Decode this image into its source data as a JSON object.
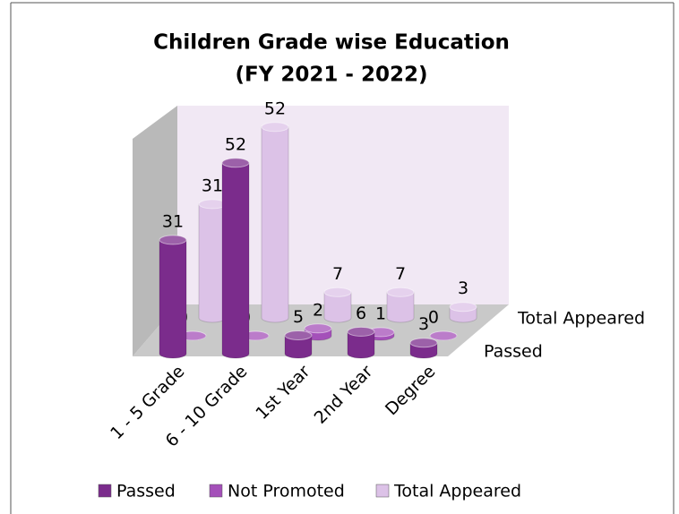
{
  "chart_data": {
    "type": "cylinder3d",
    "title": [
      "Children Grade wise Education",
      "(FY 2021 - 2022)"
    ],
    "categories": [
      "1 - 5 Grade",
      "6 - 10 Grade",
      "1st Year",
      "2nd Year",
      "Degree"
    ],
    "series": [
      {
        "name": "Passed",
        "color": "#7b2c8c",
        "values": [
          31,
          52,
          5,
          6,
          3
        ]
      },
      {
        "name": "Not Promoted",
        "color": "#a450b9",
        "values": [
          0,
          0,
          2,
          1,
          0
        ]
      },
      {
        "name": "Total Appeared",
        "color": "#dcc2e7",
        "values": [
          31,
          52,
          7,
          7,
          3
        ]
      }
    ],
    "legend": "bottom"
  }
}
